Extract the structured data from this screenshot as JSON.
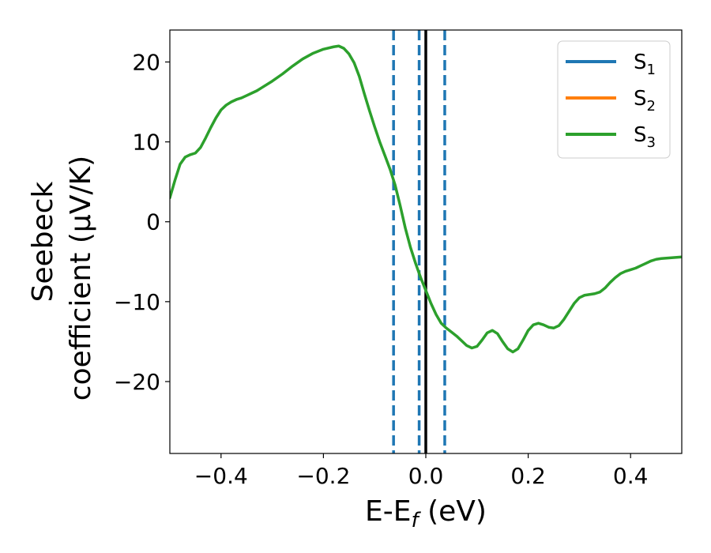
{
  "chart_data": {
    "type": "line",
    "xlabel": {
      "main": "E-E",
      "sub": "f",
      "unit": " (eV)"
    },
    "ylabel": {
      "line1": "Seebeck",
      "line2": "coefficient  (μV/K)"
    },
    "xlim": [
      -0.5,
      0.5
    ],
    "ylim": [
      -29,
      24
    ],
    "xticks": [
      {
        "value": -0.4,
        "label": "−0.4"
      },
      {
        "value": -0.2,
        "label": "−0.2"
      },
      {
        "value": 0.0,
        "label": "0.0"
      },
      {
        "value": 0.2,
        "label": "0.2"
      },
      {
        "value": 0.4,
        "label": "0.4"
      }
    ],
    "yticks": [
      {
        "value": 20,
        "label": "20"
      },
      {
        "value": 10,
        "label": "10"
      },
      {
        "value": 0,
        "label": "0"
      },
      {
        "value": -10,
        "label": "−10"
      },
      {
        "value": -20,
        "label": "−20"
      }
    ],
    "grid": false,
    "legend_position": "top-right",
    "series": [
      {
        "name": "S",
        "sub": "1",
        "color": "#1f77b4",
        "points": []
      },
      {
        "name": "S",
        "sub": "2",
        "color": "#ff7f0e",
        "points": []
      },
      {
        "name": "S",
        "sub": "3",
        "color": "#2ca02c",
        "points": [
          [
            -0.5,
            3.0
          ],
          [
            -0.49,
            5.2
          ],
          [
            -0.48,
            7.2
          ],
          [
            -0.47,
            8.1
          ],
          [
            -0.46,
            8.4
          ],
          [
            -0.45,
            8.6
          ],
          [
            -0.44,
            9.3
          ],
          [
            -0.43,
            10.5
          ],
          [
            -0.42,
            11.8
          ],
          [
            -0.41,
            13.0
          ],
          [
            -0.4,
            14.0
          ],
          [
            -0.39,
            14.6
          ],
          [
            -0.38,
            15.0
          ],
          [
            -0.37,
            15.3
          ],
          [
            -0.36,
            15.5
          ],
          [
            -0.35,
            15.8
          ],
          [
            -0.34,
            16.1
          ],
          [
            -0.33,
            16.4
          ],
          [
            -0.32,
            16.8
          ],
          [
            -0.3,
            17.6
          ],
          [
            -0.28,
            18.5
          ],
          [
            -0.26,
            19.5
          ],
          [
            -0.24,
            20.4
          ],
          [
            -0.22,
            21.1
          ],
          [
            -0.2,
            21.6
          ],
          [
            -0.18,
            21.9
          ],
          [
            -0.17,
            22.0
          ],
          [
            -0.16,
            21.7
          ],
          [
            -0.15,
            21.0
          ],
          [
            -0.14,
            19.9
          ],
          [
            -0.13,
            18.2
          ],
          [
            -0.12,
            16.0
          ],
          [
            -0.11,
            13.9
          ],
          [
            -0.1,
            11.9
          ],
          [
            -0.09,
            10.0
          ],
          [
            -0.08,
            8.3
          ],
          [
            -0.07,
            6.6
          ],
          [
            -0.06,
            4.6
          ],
          [
            -0.05,
            2.0
          ],
          [
            -0.04,
            -0.8
          ],
          [
            -0.03,
            -3.2
          ],
          [
            -0.02,
            -5.2
          ],
          [
            -0.01,
            -7.0
          ],
          [
            0.0,
            -8.6
          ],
          [
            0.01,
            -10.2
          ],
          [
            0.02,
            -11.6
          ],
          [
            0.03,
            -12.7
          ],
          [
            0.04,
            -13.3
          ],
          [
            0.05,
            -13.8
          ],
          [
            0.06,
            -14.3
          ],
          [
            0.07,
            -14.9
          ],
          [
            0.08,
            -15.5
          ],
          [
            0.09,
            -15.8
          ],
          [
            0.1,
            -15.6
          ],
          [
            0.11,
            -14.8
          ],
          [
            0.12,
            -13.9
          ],
          [
            0.13,
            -13.6
          ],
          [
            0.14,
            -14.0
          ],
          [
            0.15,
            -15.0
          ],
          [
            0.16,
            -15.9
          ],
          [
            0.17,
            -16.3
          ],
          [
            0.18,
            -15.9
          ],
          [
            0.19,
            -14.8
          ],
          [
            0.2,
            -13.6
          ],
          [
            0.21,
            -12.9
          ],
          [
            0.22,
            -12.7
          ],
          [
            0.23,
            -12.9
          ],
          [
            0.24,
            -13.2
          ],
          [
            0.25,
            -13.3
          ],
          [
            0.26,
            -13.0
          ],
          [
            0.27,
            -12.2
          ],
          [
            0.28,
            -11.2
          ],
          [
            0.29,
            -10.2
          ],
          [
            0.3,
            -9.5
          ],
          [
            0.31,
            -9.2
          ],
          [
            0.32,
            -9.1
          ],
          [
            0.33,
            -9.0
          ],
          [
            0.34,
            -8.8
          ],
          [
            0.35,
            -8.3
          ],
          [
            0.36,
            -7.6
          ],
          [
            0.37,
            -7.0
          ],
          [
            0.38,
            -6.5
          ],
          [
            0.39,
            -6.2
          ],
          [
            0.4,
            -6.0
          ],
          [
            0.41,
            -5.8
          ],
          [
            0.42,
            -5.5
          ],
          [
            0.43,
            -5.2
          ],
          [
            0.44,
            -4.9
          ],
          [
            0.45,
            -4.7
          ],
          [
            0.46,
            -4.6
          ],
          [
            0.47,
            -4.55
          ],
          [
            0.48,
            -4.5
          ],
          [
            0.49,
            -4.45
          ],
          [
            0.5,
            -4.4
          ]
        ]
      }
    ],
    "vlines": [
      {
        "x": -0.063,
        "color": "#1f77b4",
        "style": "dashed"
      },
      {
        "x": -0.013,
        "color": "#1f77b4",
        "style": "dashed"
      },
      {
        "x": 0.0,
        "color": "#000000",
        "style": "solid"
      },
      {
        "x": 0.037,
        "color": "#1f77b4",
        "style": "dashed"
      }
    ]
  }
}
